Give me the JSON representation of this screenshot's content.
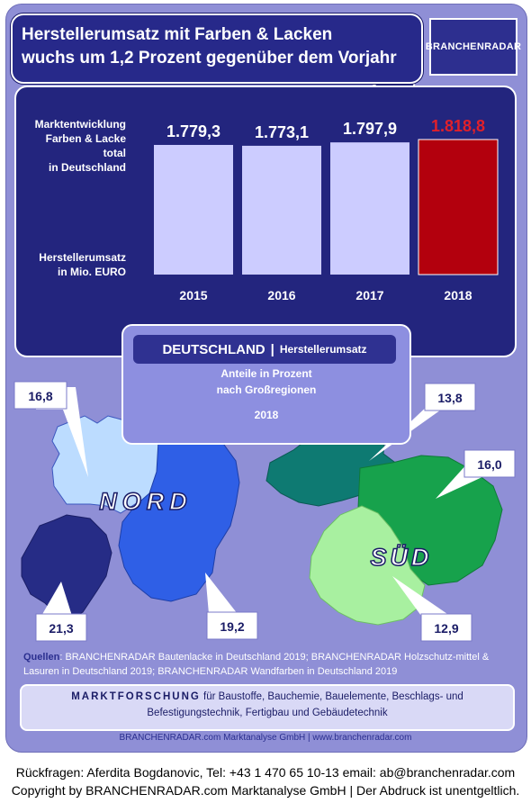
{
  "headline": {
    "line1": "Herstellerumsatz mit  Farben & Lacken",
    "line2": "wuchs um 1,2 Prozent gegenüber dem Vorjahr"
  },
  "logo": {
    "text": "BRANCHENRADAR"
  },
  "chart_data": {
    "type": "bar",
    "categories": [
      "2015",
      "2016",
      "2017",
      "2018"
    ],
    "values": [
      1779.3,
      1773.1,
      1797.9,
      1818.8
    ],
    "value_labels": [
      "1.779,3",
      "1.773,1",
      "1.797,9",
      "1.818,8"
    ],
    "title_lines": [
      "Marktentwicklung",
      "Farben & Lacke",
      "total",
      "in Deutschland"
    ],
    "ylabel_lines": [
      "Herstellerumsatz",
      "in Mio. EURO"
    ],
    "highlight_category": "2018",
    "colors": {
      "bar": "#ccccff",
      "highlight_bar": "#b3000d",
      "highlight_label": "#e0202a",
      "panel": "#23257e"
    }
  },
  "map_section": {
    "country": "DEUTSCHLAND",
    "measure": "Herstellerumsatz",
    "subtitle_line1": "Anteile in Prozent",
    "subtitle_line2": "nach Großregionen",
    "year": "2018",
    "nord_label": "NORD",
    "sued_label": "SÜD",
    "regions": [
      {
        "label": "16,8",
        "share": 16.8,
        "color": "#bcdcff"
      },
      {
        "label": "21,3",
        "share": 21.3,
        "color": "#262c86"
      },
      {
        "label": "19,2",
        "share": 19.2,
        "color": "#2f5fe6"
      },
      {
        "label": "13,8",
        "share": 13.8,
        "color": "#0e7a72"
      },
      {
        "label": "16,0",
        "share": 16.0,
        "color": "#17a24c"
      },
      {
        "label": "12,9",
        "share": 12.9,
        "color": "#a8f0a0"
      }
    ]
  },
  "sources": {
    "key": "Quellen",
    "text": ": BRANCHENRADAR Bautenlacke in Deutschland 2019; BRANCHENRADAR Holzschutz-mittel & Lasuren in Deutschland 2019; BRANCHENRADAR Wandfarben in Deutschland 2019"
  },
  "marktforschung": {
    "key": "MARKTFORSCHUNG",
    "text": " für Baustoffe, Bauchemie, Bauelemente, Beschlags- und Befestigungstechnik, Fertigbau und Gebäudetechnik"
  },
  "website_line": "BRANCHENRADAR.com Marktanalyse GmbH | www.branchenradar.com",
  "footer": {
    "contact": "Rückfragen: Aferdita Bogdanovic, Tel: +43 1 470 65 10-13 email: ab@branchenradar.com",
    "copyright": "Copyright by BRANCHENRADAR.com  Marktanalyse GmbH | Der Abdruck ist unentgeltlich."
  }
}
